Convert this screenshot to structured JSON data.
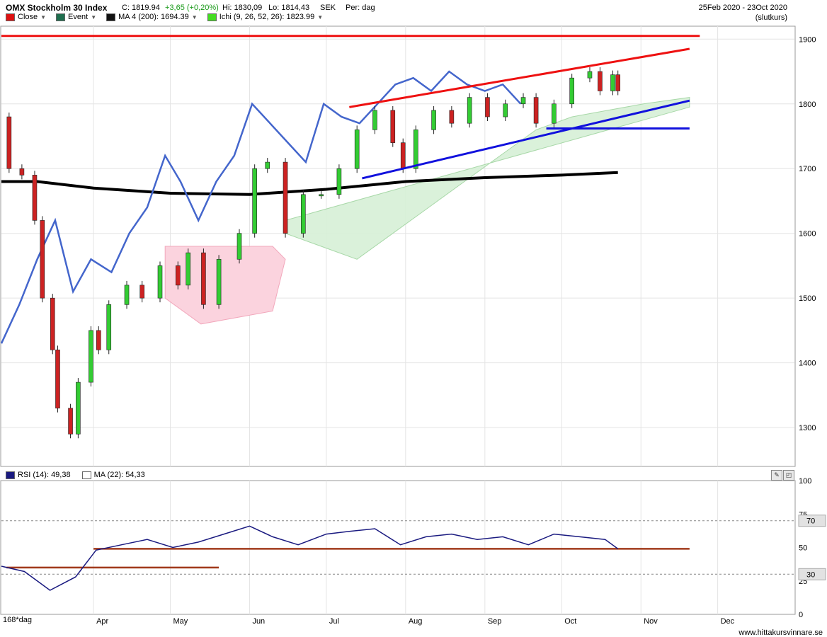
{
  "header": {
    "title": "OMX Stockholm 30 Index",
    "close": "C: 1819.94",
    "change": "+3,65 (+0,20%)",
    "high": "Hi: 1830,09",
    "low": "Lo: 1814,43",
    "currency": "SEK",
    "period": "Per: dag",
    "date_range": "25Feb 2020 - 23Oct 2020",
    "mode": "(slutkurs)"
  },
  "legend": {
    "close": "Close",
    "event": "Event",
    "ma": "MA 4 (200): 1694.39",
    "ichi": "Ichi (9, 26, 52, 26): 1823.99"
  },
  "rsi_legend": {
    "rsi": "RSI (14): 49,38",
    "ma": "MA (22): 54,33"
  },
  "footer": {
    "range_label": "168*dag",
    "site": "www.hittakursvinnare.se"
  },
  "colors": {
    "up": "#33cc33",
    "down": "#cc2222",
    "ma200": "#000000",
    "comparison_line": "#4466cc",
    "trend_red": "#ee1111",
    "trend_blue": "#1111dd",
    "cloud_green": "#d6efd6",
    "cloud_pink": "#fbd3de",
    "rsi_line": "#1a1a80"
  },
  "chart_data": [
    {
      "type": "candlestick",
      "title": "OMX Stockholm 30 Index",
      "ylim": [
        1240,
        1920
      ],
      "y_ticks": [
        1300,
        1400,
        1500,
        1600,
        1700,
        1800,
        1900
      ],
      "x_ticks": [
        "Apr",
        "May",
        "Jun",
        "Jul",
        "Aug",
        "Sep",
        "Oct",
        "Nov",
        "Dec"
      ],
      "x_range": [
        "2020-02-25",
        "2020-12-31"
      ],
      "close_path": [
        [
          "2020-02-25",
          1780
        ],
        [
          "2020-02-28",
          1700
        ],
        [
          "2020-03-04",
          1690
        ],
        [
          "2020-03-09",
          1620
        ],
        [
          "2020-03-12",
          1500
        ],
        [
          "2020-03-16",
          1420
        ],
        [
          "2020-03-18",
          1330
        ],
        [
          "2020-03-23",
          1290
        ],
        [
          "2020-03-26",
          1370
        ],
        [
          "2020-03-31",
          1450
        ],
        [
          "2020-04-03",
          1420
        ],
        [
          "2020-04-07",
          1490
        ],
        [
          "2020-04-14",
          1520
        ],
        [
          "2020-04-20",
          1500
        ],
        [
          "2020-04-27",
          1550
        ],
        [
          "2020-05-04",
          1520
        ],
        [
          "2020-05-08",
          1570
        ],
        [
          "2020-05-14",
          1490
        ],
        [
          "2020-05-20",
          1560
        ],
        [
          "2020-05-28",
          1600
        ],
        [
          "2020-06-03",
          1700
        ],
        [
          "2020-06-08",
          1710
        ],
        [
          "2020-06-15",
          1600
        ],
        [
          "2020-06-22",
          1660
        ],
        [
          "2020-06-29",
          1660
        ],
        [
          "2020-07-06",
          1700
        ],
        [
          "2020-07-13",
          1760
        ],
        [
          "2020-07-20",
          1790
        ],
        [
          "2020-07-27",
          1740
        ],
        [
          "2020-07-31",
          1700
        ],
        [
          "2020-08-05",
          1760
        ],
        [
          "2020-08-12",
          1790
        ],
        [
          "2020-08-19",
          1770
        ],
        [
          "2020-08-26",
          1810
        ],
        [
          "2020-09-02",
          1780
        ],
        [
          "2020-09-09",
          1800
        ],
        [
          "2020-09-16",
          1810
        ],
        [
          "2020-09-21",
          1770
        ],
        [
          "2020-09-28",
          1800
        ],
        [
          "2020-10-05",
          1840
        ],
        [
          "2020-10-12",
          1850
        ],
        [
          "2020-10-16",
          1820
        ],
        [
          "2020-10-21",
          1845
        ],
        [
          "2020-10-23",
          1820
        ]
      ],
      "ma200_path": [
        [
          "2020-02-25",
          1680
        ],
        [
          "2020-03-10",
          1680
        ],
        [
          "2020-04-01",
          1670
        ],
        [
          "2020-05-01",
          1662
        ],
        [
          "2020-06-01",
          1660
        ],
        [
          "2020-07-01",
          1668
        ],
        [
          "2020-08-01",
          1680
        ],
        [
          "2020-09-01",
          1686
        ],
        [
          "2020-10-01",
          1690
        ],
        [
          "2020-10-23",
          1694
        ]
      ],
      "blue_line_path": [
        [
          "2020-02-25",
          1430
        ],
        [
          "2020-03-03",
          1490
        ],
        [
          "2020-03-10",
          1560
        ],
        [
          "2020-03-17",
          1620
        ],
        [
          "2020-03-24",
          1510
        ],
        [
          "2020-03-31",
          1560
        ],
        [
          "2020-04-08",
          1540
        ],
        [
          "2020-04-15",
          1600
        ],
        [
          "2020-04-22",
          1640
        ],
        [
          "2020-04-29",
          1720
        ],
        [
          "2020-05-05",
          1680
        ],
        [
          "2020-05-12",
          1620
        ],
        [
          "2020-05-19",
          1680
        ],
        [
          "2020-05-26",
          1720
        ],
        [
          "2020-06-02",
          1800
        ],
        [
          "2020-06-09",
          1770
        ],
        [
          "2020-06-16",
          1740
        ],
        [
          "2020-06-23",
          1710
        ],
        [
          "2020-06-30",
          1800
        ],
        [
          "2020-07-07",
          1780
        ],
        [
          "2020-07-14",
          1770
        ],
        [
          "2020-07-21",
          1800
        ],
        [
          "2020-07-28",
          1830
        ],
        [
          "2020-08-04",
          1840
        ],
        [
          "2020-08-11",
          1820
        ],
        [
          "2020-08-18",
          1850
        ],
        [
          "2020-08-25",
          1830
        ],
        [
          "2020-09-01",
          1820
        ],
        [
          "2020-09-08",
          1830
        ],
        [
          "2020-09-15",
          1800
        ]
      ],
      "cloud_green": [
        [
          "2020-06-15",
          1600
        ],
        [
          "2020-06-29",
          1580
        ],
        [
          "2020-07-13",
          1560
        ],
        [
          "2020-07-27",
          1600
        ],
        [
          "2020-08-10",
          1640
        ],
        [
          "2020-08-24",
          1680
        ],
        [
          "2020-09-07",
          1720
        ],
        [
          "2020-09-21",
          1760
        ],
        [
          "2020-10-05",
          1780
        ],
        [
          "2020-10-19",
          1790
        ],
        [
          "2020-11-02",
          1800
        ],
        [
          "2020-11-20",
          1810
        ]
      ],
      "cloud_pink": [
        [
          "2020-04-29",
          1580
        ],
        [
          "2020-05-13",
          1580
        ],
        [
          "2020-05-27",
          1580
        ],
        [
          "2020-06-10",
          1580
        ],
        [
          "2020-06-15",
          1560
        ]
      ],
      "trend_lines": [
        {
          "color": "trend_red",
          "from": [
            "2020-07-10",
            1795
          ],
          "to": [
            "2020-11-20",
            1885
          ]
        },
        {
          "color": "trend_blue",
          "from": [
            "2020-07-15",
            1685
          ],
          "to": [
            "2020-11-20",
            1805
          ]
        },
        {
          "color": "trend_blue",
          "from": [
            "2020-09-25",
            1762
          ],
          "to": [
            "2020-11-20",
            1762
          ]
        },
        {
          "color": "trend_red",
          "from": [
            "2020-02-25",
            1905
          ],
          "to": [
            "2020-11-24",
            1905
          ]
        }
      ]
    },
    {
      "type": "line",
      "title": "RSI (14)",
      "ylim": [
        0,
        100
      ],
      "y_ticks": [
        0,
        25,
        50,
        75,
        100
      ],
      "levels": [
        70,
        30
      ],
      "rsi_path": [
        [
          "2020-02-25",
          36
        ],
        [
          "2020-03-05",
          32
        ],
        [
          "2020-03-15",
          18
        ],
        [
          "2020-03-25",
          28
        ],
        [
          "2020-04-02",
          48
        ],
        [
          "2020-04-12",
          52
        ],
        [
          "2020-04-22",
          56
        ],
        [
          "2020-05-02",
          50
        ],
        [
          "2020-05-12",
          54
        ],
        [
          "2020-05-22",
          60
        ],
        [
          "2020-06-01",
          66
        ],
        [
          "2020-06-10",
          58
        ],
        [
          "2020-06-20",
          52
        ],
        [
          "2020-07-01",
          60
        ],
        [
          "2020-07-10",
          62
        ],
        [
          "2020-07-20",
          64
        ],
        [
          "2020-07-30",
          52
        ],
        [
          "2020-08-09",
          58
        ],
        [
          "2020-08-19",
          60
        ],
        [
          "2020-08-29",
          56
        ],
        [
          "2020-09-08",
          58
        ],
        [
          "2020-09-18",
          52
        ],
        [
          "2020-09-28",
          60
        ],
        [
          "2020-10-08",
          58
        ],
        [
          "2020-10-18",
          56
        ],
        [
          "2020-10-23",
          49
        ]
      ]
    }
  ]
}
